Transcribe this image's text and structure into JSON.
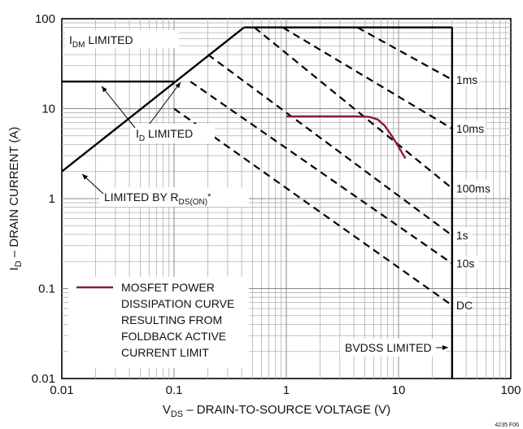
{
  "figure_id": "4235 F06",
  "chart_data": {
    "type": "line",
    "x_scale": "log",
    "y_scale": "log",
    "xlim": [
      0.01,
      100
    ],
    "ylim": [
      0.01,
      100
    ],
    "grid": true,
    "xlabel": {
      "main": "V",
      "sub": "DS",
      "rest": " – DRAIN-TO-SOURCE VOLTAGE (V)"
    },
    "ylabel": {
      "main": "I",
      "sub": "D",
      "rest": " – DRAIN CURRENT (A)"
    },
    "x_ticks": [
      {
        "value": 0.01,
        "label": "0.01"
      },
      {
        "value": 0.1,
        "label": "0.1"
      },
      {
        "value": 1,
        "label": "1"
      },
      {
        "value": 10,
        "label": "10"
      },
      {
        "value": 100,
        "label": "100"
      }
    ],
    "y_ticks": [
      {
        "value": 100,
        "label": "100"
      },
      {
        "value": 10,
        "label": "10"
      },
      {
        "value": 1,
        "label": "1"
      },
      {
        "value": 0.1,
        "label": "0.1"
      },
      {
        "value": 0.01,
        "label": "0.01"
      }
    ],
    "limits": [
      {
        "name": "IDM LIMITED",
        "points": [
          [
            0.42,
            80
          ],
          [
            30,
            80
          ]
        ]
      },
      {
        "name": "ID LIMITED",
        "points": [
          [
            0.01,
            20
          ],
          [
            0.1,
            20
          ]
        ]
      },
      {
        "name": "LIMITED BY RDS(ON)*",
        "points": [
          [
            0.01,
            2
          ],
          [
            0.42,
            80
          ]
        ]
      },
      {
        "name": "BVDSS LIMITED",
        "points": [
          [
            30,
            0.01
          ],
          [
            30,
            80
          ]
        ]
      }
    ],
    "soa_lines": [
      {
        "label": "1ms",
        "points": [
          [
            4.3,
            80
          ],
          [
            30,
            21
          ]
        ]
      },
      {
        "label": "10ms",
        "points": [
          [
            0.93,
            80
          ],
          [
            30,
            6
          ]
        ]
      },
      {
        "label": "100ms",
        "points": [
          [
            0.52,
            80
          ],
          [
            30,
            1.3
          ]
        ]
      },
      {
        "label": "1s",
        "points": [
          [
            0.2,
            40
          ],
          [
            30,
            0.39
          ]
        ]
      },
      {
        "label": "10s",
        "points": [
          [
            0.14,
            20
          ],
          [
            30,
            0.19
          ]
        ]
      },
      {
        "label": "DC",
        "points": [
          [
            0.1,
            10
          ],
          [
            30,
            0.065
          ]
        ]
      }
    ],
    "mosfet_curve": {
      "label": "MOSFET POWER DISSIPATION CURVE RESULTING FROM FOLDBACK ACTIVE CURRENT LIMIT",
      "color": "#8b1a3a",
      "points": [
        [
          1,
          8.2
        ],
        [
          2,
          8.2
        ],
        [
          4,
          8.2
        ],
        [
          5.5,
          8.1
        ],
        [
          6.5,
          7.6
        ],
        [
          7.5,
          6.5
        ],
        [
          8.5,
          5.2
        ],
        [
          9.5,
          4.2
        ],
        [
          10.5,
          3.4
        ],
        [
          11.5,
          2.8
        ]
      ]
    },
    "annotations": {
      "idm": {
        "main": "I",
        "sub": "DM",
        "rest": " LIMITED"
      },
      "id": {
        "main": "I",
        "sub": "D",
        "rest": " LIMITED"
      },
      "rds": {
        "main": "LIMITED BY R",
        "sub": "DS(ON)",
        "rest": "*"
      },
      "bvdss": "BVDSS LIMITED"
    },
    "legend": {
      "lines": [
        "MOSFET POWER",
        "DISSIPATION CURVE",
        "RESULTING FROM",
        "FOLDBACK ACTIVE",
        "CURRENT LIMIT"
      ],
      "color": "#8b1a3a",
      "position": "bottom-left"
    }
  }
}
